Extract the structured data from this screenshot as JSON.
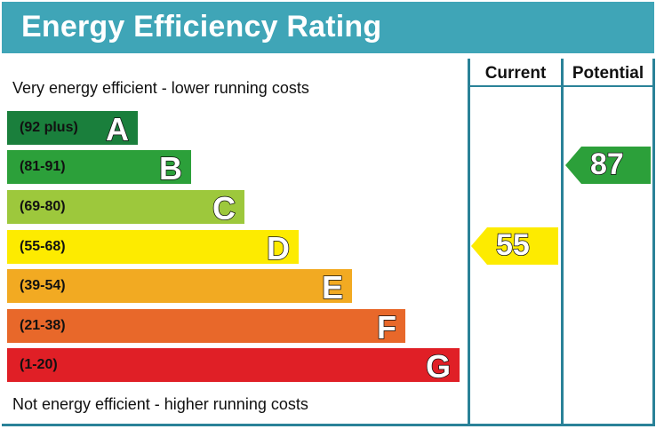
{
  "title": "Energy Efficiency Rating",
  "columns": {
    "current": "Current",
    "potential": "Potential"
  },
  "top_note": "Very energy efficient - lower running costs",
  "bottom_note": "Not energy efficient - higher running costs",
  "chart_data": {
    "type": "bar",
    "bands": [
      {
        "letter": "A",
        "range": "(92 plus)",
        "color": "#1a7f3c"
      },
      {
        "letter": "B",
        "range": "(81-91)",
        "color": "#2ca03a"
      },
      {
        "letter": "C",
        "range": "(69-80)",
        "color": "#9dc83c"
      },
      {
        "letter": "D",
        "range": "(55-68)",
        "color": "#fdeb00"
      },
      {
        "letter": "E",
        "range": "(39-54)",
        "color": "#f2aa22"
      },
      {
        "letter": "F",
        "range": "(21-38)",
        "color": "#e8682a"
      },
      {
        "letter": "G",
        "range": "(1-20)",
        "color": "#e01f26"
      }
    ],
    "current": {
      "value": 55,
      "band": "D",
      "color": "#fdeb00"
    },
    "potential": {
      "value": 87,
      "band": "B",
      "color": "#2ca03a"
    }
  }
}
